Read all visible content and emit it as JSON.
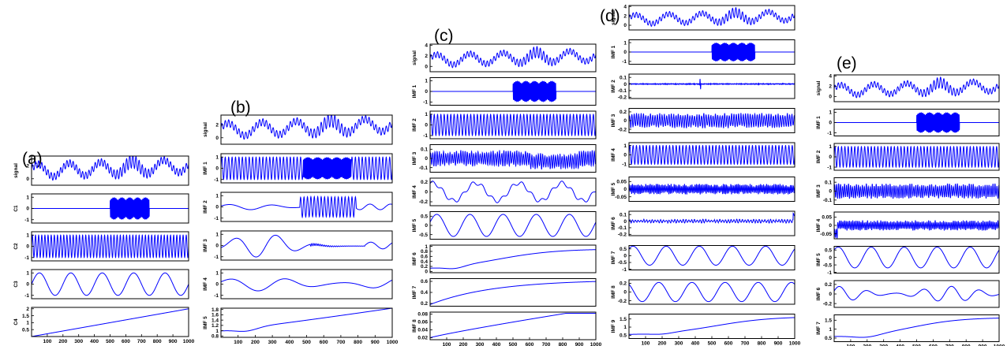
{
  "figure": {
    "panel_labels": [
      "(a)",
      "(b)",
      "(c)",
      "(d)",
      "(e)"
    ],
    "x_axis": {
      "min": 0,
      "max": 1000,
      "ticks": [
        100,
        200,
        300,
        400,
        500,
        600,
        700,
        800,
        900,
        1000
      ]
    }
  },
  "chart_data": [
    {
      "type": "line",
      "label": "(a)",
      "xlim": [
        0,
        1000
      ],
      "line_color": "#0000ff",
      "subplots": [
        {
          "ylabel": "signal",
          "yticks": [
            "2",
            "0"
          ],
          "ylim": [
            -1,
            3.5
          ],
          "model": "signal"
        },
        {
          "ylabel": "C1",
          "yticks": [
            "1",
            "0",
            "-1"
          ],
          "ylim": [
            -1.3,
            1.3
          ],
          "model": "burst",
          "burst": [
            500,
            750
          ],
          "freq": 0.3
        },
        {
          "ylabel": "C2",
          "yticks": [
            "1",
            "0",
            "-1"
          ],
          "ylim": [
            -1.3,
            1.3
          ],
          "model": "sine",
          "period": 20,
          "amp": 1
        },
        {
          "ylabel": "C3",
          "yticks": [
            "1",
            "0",
            "-1"
          ],
          "ylim": [
            -1.3,
            1.3
          ],
          "model": "sine",
          "period": 200,
          "amp": 1,
          "phase": 0
        },
        {
          "ylabel": "C4",
          "yticks": [
            "2",
            "1.5",
            "1",
            "0.5"
          ],
          "ylim": [
            0,
            2.1
          ],
          "model": "linear",
          "from": 0,
          "to": 2
        }
      ]
    },
    {
      "type": "line",
      "label": "(b)",
      "xlim": [
        0,
        1000
      ],
      "line_color": "#0000ff",
      "subplots": [
        {
          "ylabel": "signal",
          "yticks": [
            "2",
            "0"
          ],
          "ylim": [
            -1,
            3.5
          ],
          "model": "signal"
        },
        {
          "ylabel": "IMF 1",
          "yticks": [
            "1",
            "0",
            "-1"
          ],
          "ylim": [
            -1.3,
            1.3
          ],
          "model": "burst_on_sine",
          "burst": [
            480,
            760
          ],
          "period": 20
        },
        {
          "ylabel": "IMF 2",
          "yticks": [
            "1",
            "0",
            "-1"
          ],
          "ylim": [
            -1.3,
            1.3
          ],
          "model": "mixed_b2"
        },
        {
          "ylabel": "IMF 3",
          "yticks": [
            "1",
            "0",
            "-1"
          ],
          "ylim": [
            -1.3,
            1.3
          ],
          "model": "mixed_b3"
        },
        {
          "ylabel": "IMF 4",
          "yticks": [
            "1",
            "0",
            "-1"
          ],
          "ylim": [
            -1.3,
            1.3
          ],
          "model": "wave_b4"
        },
        {
          "ylabel": "IMF 5",
          "yticks": [
            "1.8",
            "1.6",
            "1.4",
            "1.2",
            "1",
            "0.8"
          ],
          "ylim": [
            0.75,
            1.85
          ],
          "model": "trend_b5"
        }
      ]
    },
    {
      "type": "line",
      "label": "(c)",
      "xlim": [
        0,
        1000
      ],
      "line_color": "#0000ff",
      "subplots": [
        {
          "ylabel": "signal",
          "yticks": [
            "4",
            "2",
            "0"
          ],
          "ylim": [
            -1,
            4.2
          ],
          "model": "signal"
        },
        {
          "ylabel": "IMF 1",
          "yticks": [
            "1",
            "0",
            "-1"
          ],
          "ylim": [
            -1.3,
            1.3
          ],
          "model": "burst",
          "burst": [
            500,
            760
          ],
          "freq": 0.3
        },
        {
          "ylabel": "IMF 2",
          "yticks": [
            "1",
            "0",
            "-1"
          ],
          "ylim": [
            -1.3,
            1.3
          ],
          "model": "sine",
          "period": 20,
          "amp": 1
        },
        {
          "ylabel": "IMF 3",
          "yticks": [
            "0.1",
            "0",
            "-0.1"
          ],
          "ylim": [
            -0.15,
            0.15
          ],
          "model": "noise_c3"
        },
        {
          "ylabel": "IMF 4",
          "yticks": [
            "0.2",
            "0",
            "-0.2"
          ],
          "ylim": [
            -0.28,
            0.28
          ],
          "model": "wave_c4"
        },
        {
          "ylabel": "IMF 5",
          "yticks": [
            "0.5",
            "0",
            "-0.5"
          ],
          "ylim": [
            -0.75,
            0.75
          ],
          "model": "sine",
          "period": 200,
          "amp": 0.6,
          "phase": 0.3
        },
        {
          "ylabel": "IMF 6",
          "yticks": [
            "1",
            "0.8",
            "0.6",
            "0.4",
            "0.2",
            "0"
          ],
          "ylim": [
            -0.05,
            1.05
          ],
          "model": "trend_c6"
        },
        {
          "ylabel": "IMF 7",
          "yticks": [
            "0.6",
            "0.4",
            "0.2"
          ],
          "ylim": [
            0.15,
            0.65
          ],
          "model": "trend_c7"
        },
        {
          "ylabel": "IMF 8",
          "yticks": [
            "0.08",
            "0.06",
            "0.04",
            "0.02"
          ],
          "ylim": [
            0.015,
            0.085
          ],
          "model": "trend_c8"
        }
      ]
    },
    {
      "type": "line",
      "label": "(d)",
      "xlim": [
        0,
        1000
      ],
      "line_color": "#0000ff",
      "subplots": [
        {
          "ylabel": "signal",
          "yticks": [
            "4",
            "2",
            "0"
          ],
          "ylim": [
            -1,
            4.2
          ],
          "model": "signal"
        },
        {
          "ylabel": "IMF 1",
          "yticks": [
            "1",
            "0",
            "-1"
          ],
          "ylim": [
            -1.3,
            1.3
          ],
          "model": "burst",
          "burst": [
            500,
            760
          ],
          "freq": 0.3
        },
        {
          "ylabel": "IMF 2",
          "yticks": [
            "0.1",
            "0",
            "-0.1",
            "-0.2"
          ],
          "ylim": [
            -0.22,
            0.15
          ],
          "model": "flat_noise"
        },
        {
          "ylabel": "IMF 3",
          "yticks": [
            "0.2",
            "0",
            "-0.2"
          ],
          "ylim": [
            -0.28,
            0.28
          ],
          "model": "noise_d3"
        },
        {
          "ylabel": "IMF 4",
          "yticks": [
            "1",
            "0",
            "-1"
          ],
          "ylim": [
            -1.3,
            1.3
          ],
          "model": "sine",
          "period": 20,
          "amp": 1
        },
        {
          "ylabel": "IMF 5",
          "yticks": [
            "0.05",
            "0",
            "-0.05"
          ],
          "ylim": [
            -0.08,
            0.08
          ],
          "model": "noise_d5"
        },
        {
          "ylabel": "IMF 6",
          "yticks": [
            "0.1",
            "0",
            "-0.1",
            "-0.2"
          ],
          "ylim": [
            -0.22,
            0.15
          ],
          "model": "noise_d6"
        },
        {
          "ylabel": "IMF 7",
          "yticks": [
            "0.5",
            "0",
            "-0.5",
            "-1"
          ],
          "ylim": [
            -1.05,
            0.75
          ],
          "model": "sine",
          "period": 200,
          "amp": 0.7,
          "phase": 0.8
        },
        {
          "ylabel": "IMF 8",
          "yticks": [
            "0.2",
            "0",
            "-0.2"
          ],
          "ylim": [
            -0.28,
            0.28
          ],
          "model": "sine",
          "period": 200,
          "amp": 0.22,
          "phase": 2.2
        },
        {
          "ylabel": "IMF 9",
          "yticks": [
            "1.5",
            "1",
            "0.5"
          ],
          "ylim": [
            0.3,
            1.8
          ],
          "model": "trend_d9"
        }
      ]
    },
    {
      "type": "line",
      "label": "(e)",
      "xlim": [
        0,
        1000
      ],
      "line_color": "#0000ff",
      "subplots": [
        {
          "ylabel": "signal",
          "yticks": [
            "4",
            "2",
            "0"
          ],
          "ylim": [
            -1,
            4.2
          ],
          "model": "signal"
        },
        {
          "ylabel": "IMF 1",
          "yticks": [
            "1",
            "0",
            "-1"
          ],
          "ylim": [
            -1.3,
            1.3
          ],
          "model": "burst",
          "burst": [
            500,
            760
          ],
          "freq": 0.3
        },
        {
          "ylabel": "IMF 2",
          "yticks": [
            "1",
            "0",
            "-1"
          ],
          "ylim": [
            -1.3,
            1.3
          ],
          "model": "sine",
          "period": 20,
          "amp": 1
        },
        {
          "ylabel": "IMF 3",
          "yticks": [
            "0.1",
            "0",
            "-0.1"
          ],
          "ylim": [
            -0.15,
            0.15
          ],
          "model": "noise_e3"
        },
        {
          "ylabel": "IMF 4",
          "yticks": [
            "0.05",
            "0",
            "-0.05"
          ],
          "ylim": [
            -0.08,
            0.08
          ],
          "model": "noise_e4"
        },
        {
          "ylabel": "IMF 5",
          "yticks": [
            "0.5",
            "0",
            "-0.5",
            "-1"
          ],
          "ylim": [
            -1.05,
            0.75
          ],
          "model": "sine",
          "period": 200,
          "amp": 0.7,
          "phase": 0.8
        },
        {
          "ylabel": "IMF 6",
          "yticks": [
            "0.2",
            "0",
            "-0.2"
          ],
          "ylim": [
            -0.28,
            0.28
          ],
          "model": "mod_e6"
        },
        {
          "ylabel": "IMF 7",
          "yticks": [
            "1.5",
            "1",
            "0.5"
          ],
          "ylim": [
            0.3,
            1.8
          ],
          "model": "trend_e7"
        }
      ]
    }
  ]
}
